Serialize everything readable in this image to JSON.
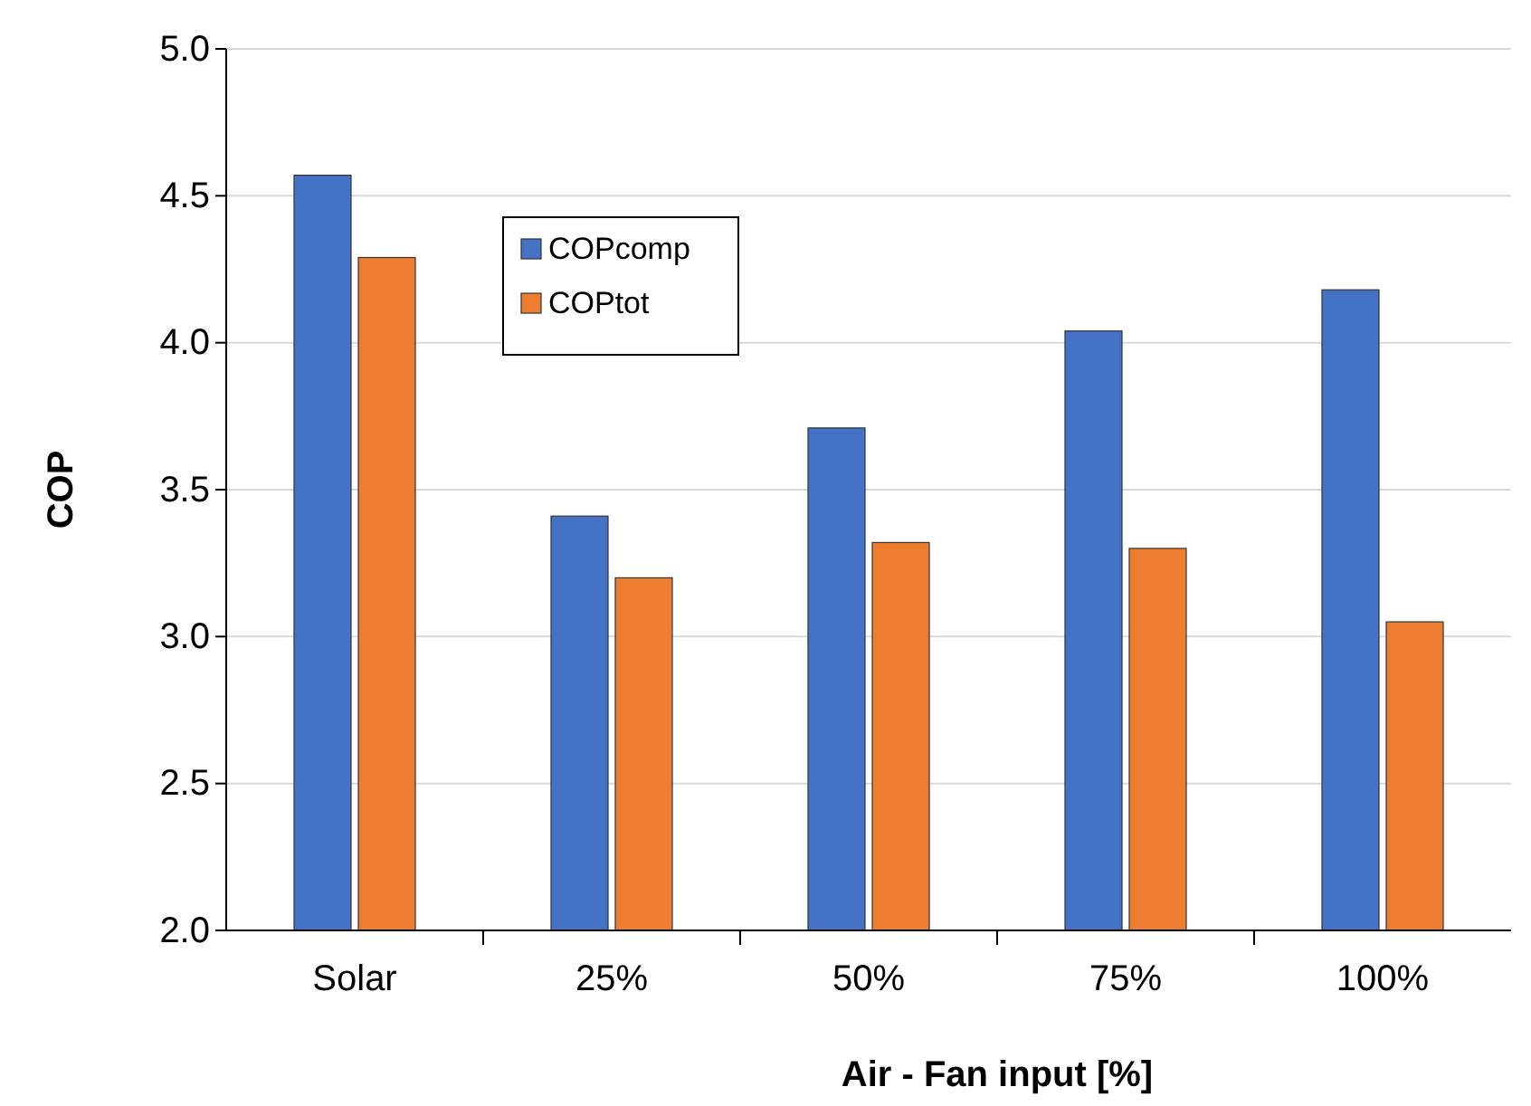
{
  "chart_data": {
    "type": "bar",
    "ylabel": "COP",
    "xlabel": "Air - Fan input [%]",
    "categories": [
      "Solar",
      "25%",
      "50%",
      "75%",
      "100%"
    ],
    "series": [
      {
        "name": "COPcomp",
        "color": "#4472c4",
        "values": [
          4.57,
          3.41,
          3.71,
          4.04,
          4.18
        ]
      },
      {
        "name": "COPtot",
        "color": "#ed7d31",
        "values": [
          4.29,
          3.2,
          3.32,
          3.3,
          3.05
        ]
      }
    ],
    "ylim": [
      2.0,
      5.0
    ],
    "yticks": [
      {
        "value": 2,
        "label": "2.0"
      },
      {
        "value": 2.5,
        "label": "2.5"
      },
      {
        "value": 3,
        "label": "3.0"
      },
      {
        "value": 3.5,
        "label": "3.5"
      },
      {
        "value": 4,
        "label": "4.0"
      },
      {
        "value": 4.5,
        "label": "4.5"
      },
      {
        "value": 5,
        "label": "5.0"
      }
    ],
    "grid": "y",
    "legend": "top"
  }
}
